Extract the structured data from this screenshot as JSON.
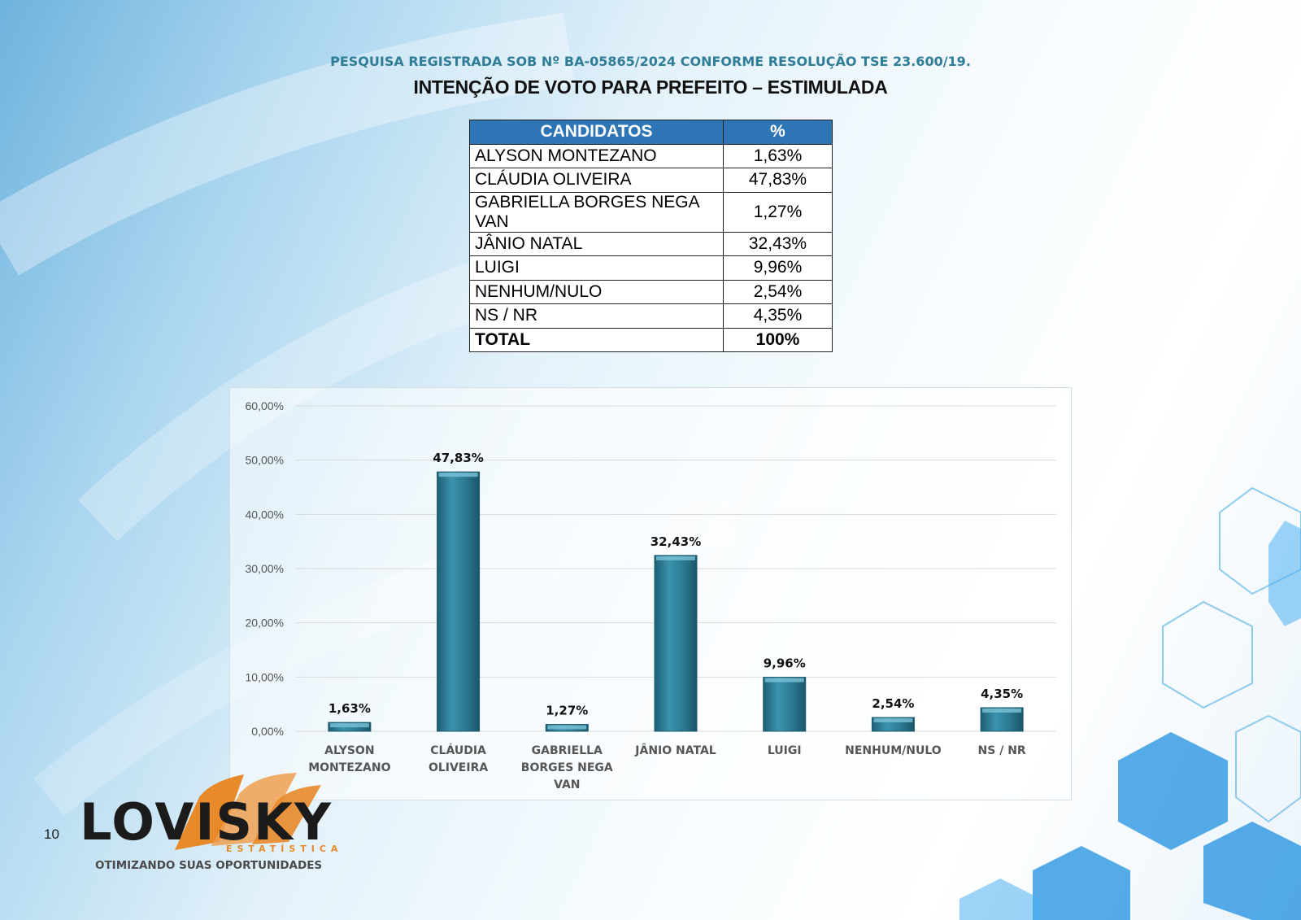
{
  "header": {
    "registration": "PESQUISA REGISTRADA SOB Nº BA-05865/2024 CONFORME RESOLUÇÃO TSE 23.600/19.",
    "title": "INTENÇÃO DE VOTO PARA PREFEITO – ESTIMULADA"
  },
  "table": {
    "headers": [
      "CANDIDATOS",
      "%"
    ],
    "rows": [
      {
        "name": "ALYSON MONTEZANO",
        "pct": "1,63%"
      },
      {
        "name": "CLÁUDIA OLIVEIRA",
        "pct": "47,83%"
      },
      {
        "name": "GABRIELLA BORGES NEGA VAN",
        "pct": "1,27%"
      },
      {
        "name": "JÂNIO NATAL",
        "pct": "32,43%"
      },
      {
        "name": "LUIGI",
        "pct": "9,96%"
      },
      {
        "name": "NENHUM/NULO",
        "pct": "2,54%"
      },
      {
        "name": "NS / NR",
        "pct": "4,35%"
      }
    ],
    "total": {
      "name": "TOTAL",
      "pct": "100%"
    }
  },
  "chart_data": {
    "type": "bar",
    "categories": [
      "ALYSON MONTEZANO",
      "CLÁUDIA OLIVEIRA",
      "GABRIELLA BORGES NEGA VAN",
      "JÂNIO NATAL",
      "LUIGI",
      "NENHUM/NULO",
      "NS / NR"
    ],
    "category_lines": [
      [
        "ALYSON",
        "MONTEZANO"
      ],
      [
        "CLÁUDIA",
        "OLIVEIRA"
      ],
      [
        "GABRIELLA",
        "BORGES NEGA",
        "VAN"
      ],
      [
        "JÂNIO NATAL"
      ],
      [
        "LUIGI"
      ],
      [
        "NENHUM/NULO"
      ],
      [
        "NS / NR"
      ]
    ],
    "values": [
      1.63,
      47.83,
      1.27,
      32.43,
      9.96,
      2.54,
      4.35
    ],
    "data_labels": [
      "1,63%",
      "47,83%",
      "1,27%",
      "32,43%",
      "9,96%",
      "2,54%",
      "4,35%"
    ],
    "yticks": [
      0,
      10,
      20,
      30,
      40,
      50,
      60
    ],
    "ytick_labels": [
      "0,00%",
      "10,00%",
      "20,00%",
      "30,00%",
      "40,00%",
      "50,00%",
      "60,00%"
    ],
    "ylim": [
      0,
      60
    ],
    "grid": true,
    "bar_color": "#2e7c95"
  },
  "footer": {
    "page_number": "10",
    "logo_word": "LOVISKY",
    "logo_sub": "ESTATÍSTICA",
    "tagline": "OTIMIZANDO SUAS OPORTUNIDADES"
  },
  "colors": {
    "accent_teal": "#2f7d96",
    "table_header": "#2e75b6",
    "logo_orange": "#e8892a"
  }
}
